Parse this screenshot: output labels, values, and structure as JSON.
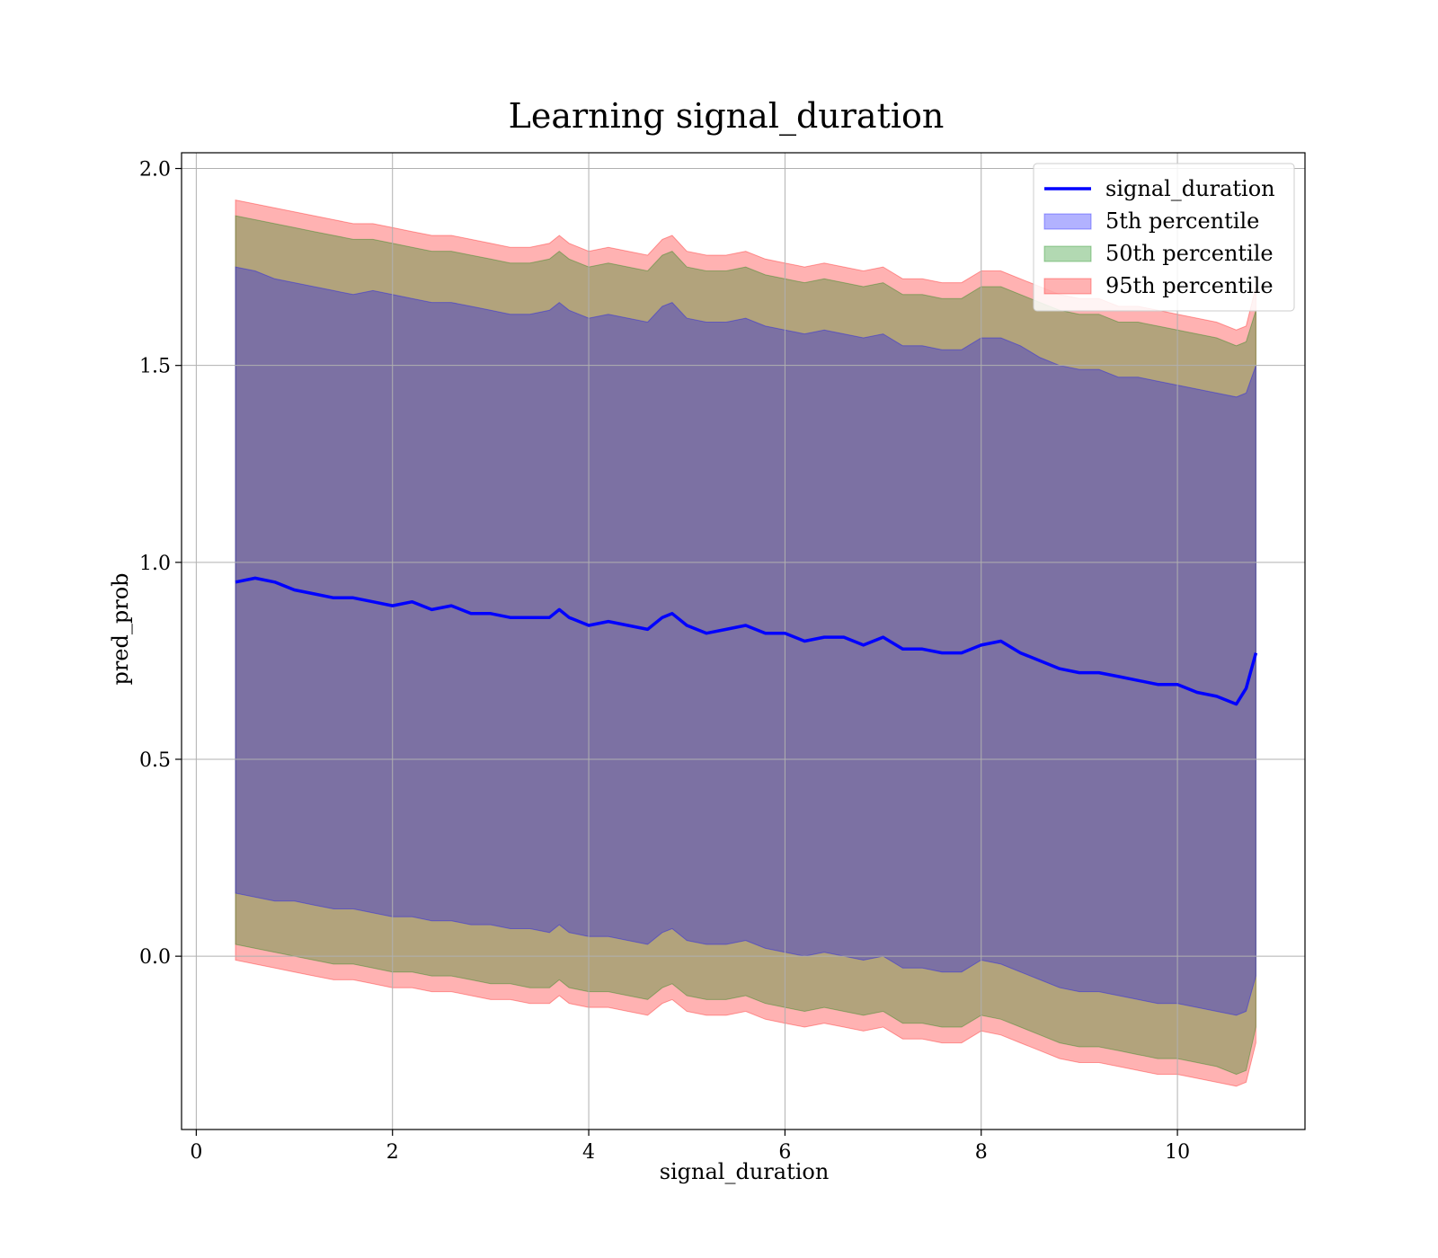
{
  "chart_data": {
    "type": "area",
    "title": "Learning signal_duration",
    "xlabel": "signal_duration",
    "ylabel": "pred_prob",
    "xlim": [
      -0.15,
      11.3
    ],
    "ylim": [
      -0.44,
      2.04
    ],
    "x_ticks": [
      0,
      2,
      4,
      6,
      8,
      10
    ],
    "x_tick_labels": [
      "0",
      "2",
      "4",
      "6",
      "8",
      "10"
    ],
    "y_ticks": [
      0.0,
      0.5,
      1.0,
      1.5,
      2.0
    ],
    "y_tick_labels": [
      "0.0",
      "0.5",
      "1.0",
      "1.5",
      "2.0"
    ],
    "grid": true,
    "legend_position": "top-right",
    "x": [
      0.4,
      0.6,
      0.8,
      1.0,
      1.2,
      1.4,
      1.6,
      1.8,
      2.0,
      2.2,
      2.4,
      2.6,
      2.8,
      3.0,
      3.2,
      3.4,
      3.6,
      3.7,
      3.8,
      4.0,
      4.2,
      4.4,
      4.6,
      4.75,
      4.85,
      5.0,
      5.2,
      5.4,
      5.6,
      5.8,
      6.0,
      6.2,
      6.4,
      6.6,
      6.8,
      7.0,
      7.2,
      7.4,
      7.6,
      7.8,
      8.0,
      8.2,
      8.4,
      8.6,
      8.8,
      9.0,
      9.2,
      9.4,
      9.6,
      9.8,
      10.0,
      10.2,
      10.4,
      10.6,
      10.7,
      10.8
    ],
    "series": [
      {
        "name": "signal_duration",
        "kind": "line",
        "color": "#0000ff",
        "values": [
          0.95,
          0.96,
          0.95,
          0.93,
          0.92,
          0.91,
          0.91,
          0.9,
          0.89,
          0.9,
          0.88,
          0.89,
          0.87,
          0.87,
          0.86,
          0.86,
          0.86,
          0.88,
          0.86,
          0.84,
          0.85,
          0.84,
          0.83,
          0.86,
          0.87,
          0.84,
          0.82,
          0.83,
          0.84,
          0.82,
          0.82,
          0.8,
          0.81,
          0.81,
          0.79,
          0.81,
          0.78,
          0.78,
          0.77,
          0.77,
          0.79,
          0.8,
          0.77,
          0.75,
          0.73,
          0.72,
          0.72,
          0.71,
          0.7,
          0.69,
          0.69,
          0.67,
          0.66,
          0.64,
          0.68,
          0.77
        ]
      },
      {
        "name": "5th percentile",
        "kind": "band",
        "color": "#0000ff",
        "upper": [
          1.75,
          1.74,
          1.72,
          1.71,
          1.7,
          1.69,
          1.68,
          1.69,
          1.68,
          1.67,
          1.66,
          1.66,
          1.65,
          1.64,
          1.63,
          1.63,
          1.64,
          1.66,
          1.64,
          1.62,
          1.63,
          1.62,
          1.61,
          1.65,
          1.66,
          1.62,
          1.61,
          1.61,
          1.62,
          1.6,
          1.59,
          1.58,
          1.59,
          1.58,
          1.57,
          1.58,
          1.55,
          1.55,
          1.54,
          1.54,
          1.57,
          1.57,
          1.55,
          1.52,
          1.5,
          1.49,
          1.49,
          1.47,
          1.47,
          1.46,
          1.45,
          1.44,
          1.43,
          1.42,
          1.43,
          1.5
        ],
        "lower": [
          0.16,
          0.15,
          0.14,
          0.14,
          0.13,
          0.12,
          0.12,
          0.11,
          0.1,
          0.1,
          0.09,
          0.09,
          0.08,
          0.08,
          0.07,
          0.07,
          0.06,
          0.08,
          0.06,
          0.05,
          0.05,
          0.04,
          0.03,
          0.06,
          0.07,
          0.04,
          0.03,
          0.03,
          0.04,
          0.02,
          0.01,
          0.0,
          0.01,
          0.0,
          -0.01,
          0.0,
          -0.03,
          -0.03,
          -0.04,
          -0.04,
          -0.01,
          -0.02,
          -0.04,
          -0.06,
          -0.08,
          -0.09,
          -0.09,
          -0.1,
          -0.11,
          -0.12,
          -0.12,
          -0.13,
          -0.14,
          -0.15,
          -0.14,
          -0.05
        ]
      },
      {
        "name": "50th percentile",
        "kind": "band",
        "color": "#008000",
        "upper": [
          1.88,
          1.87,
          1.86,
          1.85,
          1.84,
          1.83,
          1.82,
          1.82,
          1.81,
          1.8,
          1.79,
          1.79,
          1.78,
          1.77,
          1.76,
          1.76,
          1.77,
          1.79,
          1.77,
          1.75,
          1.76,
          1.75,
          1.74,
          1.78,
          1.79,
          1.75,
          1.74,
          1.74,
          1.75,
          1.73,
          1.72,
          1.71,
          1.72,
          1.71,
          1.7,
          1.71,
          1.68,
          1.68,
          1.67,
          1.67,
          1.7,
          1.7,
          1.68,
          1.66,
          1.64,
          1.63,
          1.63,
          1.61,
          1.61,
          1.6,
          1.59,
          1.58,
          1.57,
          1.55,
          1.56,
          1.64
        ],
        "lower": [
          0.03,
          0.02,
          0.01,
          0.0,
          -0.01,
          -0.02,
          -0.02,
          -0.03,
          -0.04,
          -0.04,
          -0.05,
          -0.05,
          -0.06,
          -0.07,
          -0.07,
          -0.08,
          -0.08,
          -0.06,
          -0.08,
          -0.09,
          -0.09,
          -0.1,
          -0.11,
          -0.08,
          -0.07,
          -0.1,
          -0.11,
          -0.11,
          -0.1,
          -0.12,
          -0.13,
          -0.14,
          -0.13,
          -0.14,
          -0.15,
          -0.14,
          -0.17,
          -0.17,
          -0.18,
          -0.18,
          -0.15,
          -0.16,
          -0.18,
          -0.2,
          -0.22,
          -0.23,
          -0.23,
          -0.24,
          -0.25,
          -0.26,
          -0.26,
          -0.27,
          -0.28,
          -0.3,
          -0.29,
          -0.18
        ]
      },
      {
        "name": "95th percentile",
        "kind": "band",
        "color": "#ff0000",
        "upper": [
          1.92,
          1.91,
          1.9,
          1.89,
          1.88,
          1.87,
          1.86,
          1.86,
          1.85,
          1.84,
          1.83,
          1.83,
          1.82,
          1.81,
          1.8,
          1.8,
          1.81,
          1.83,
          1.81,
          1.79,
          1.8,
          1.79,
          1.78,
          1.82,
          1.83,
          1.79,
          1.78,
          1.78,
          1.79,
          1.77,
          1.76,
          1.75,
          1.76,
          1.75,
          1.74,
          1.75,
          1.72,
          1.72,
          1.71,
          1.71,
          1.74,
          1.74,
          1.72,
          1.7,
          1.68,
          1.67,
          1.67,
          1.65,
          1.65,
          1.64,
          1.63,
          1.62,
          1.61,
          1.59,
          1.6,
          1.7
        ],
        "lower": [
          -0.01,
          -0.02,
          -0.03,
          -0.04,
          -0.05,
          -0.06,
          -0.06,
          -0.07,
          -0.08,
          -0.08,
          -0.09,
          -0.09,
          -0.1,
          -0.11,
          -0.11,
          -0.12,
          -0.12,
          -0.1,
          -0.12,
          -0.13,
          -0.13,
          -0.14,
          -0.15,
          -0.12,
          -0.11,
          -0.14,
          -0.15,
          -0.15,
          -0.14,
          -0.16,
          -0.17,
          -0.18,
          -0.17,
          -0.18,
          -0.19,
          -0.18,
          -0.21,
          -0.21,
          -0.22,
          -0.22,
          -0.19,
          -0.2,
          -0.22,
          -0.24,
          -0.26,
          -0.27,
          -0.27,
          -0.28,
          -0.29,
          -0.3,
          -0.3,
          -0.31,
          -0.32,
          -0.33,
          -0.32,
          -0.22
        ]
      }
    ]
  }
}
